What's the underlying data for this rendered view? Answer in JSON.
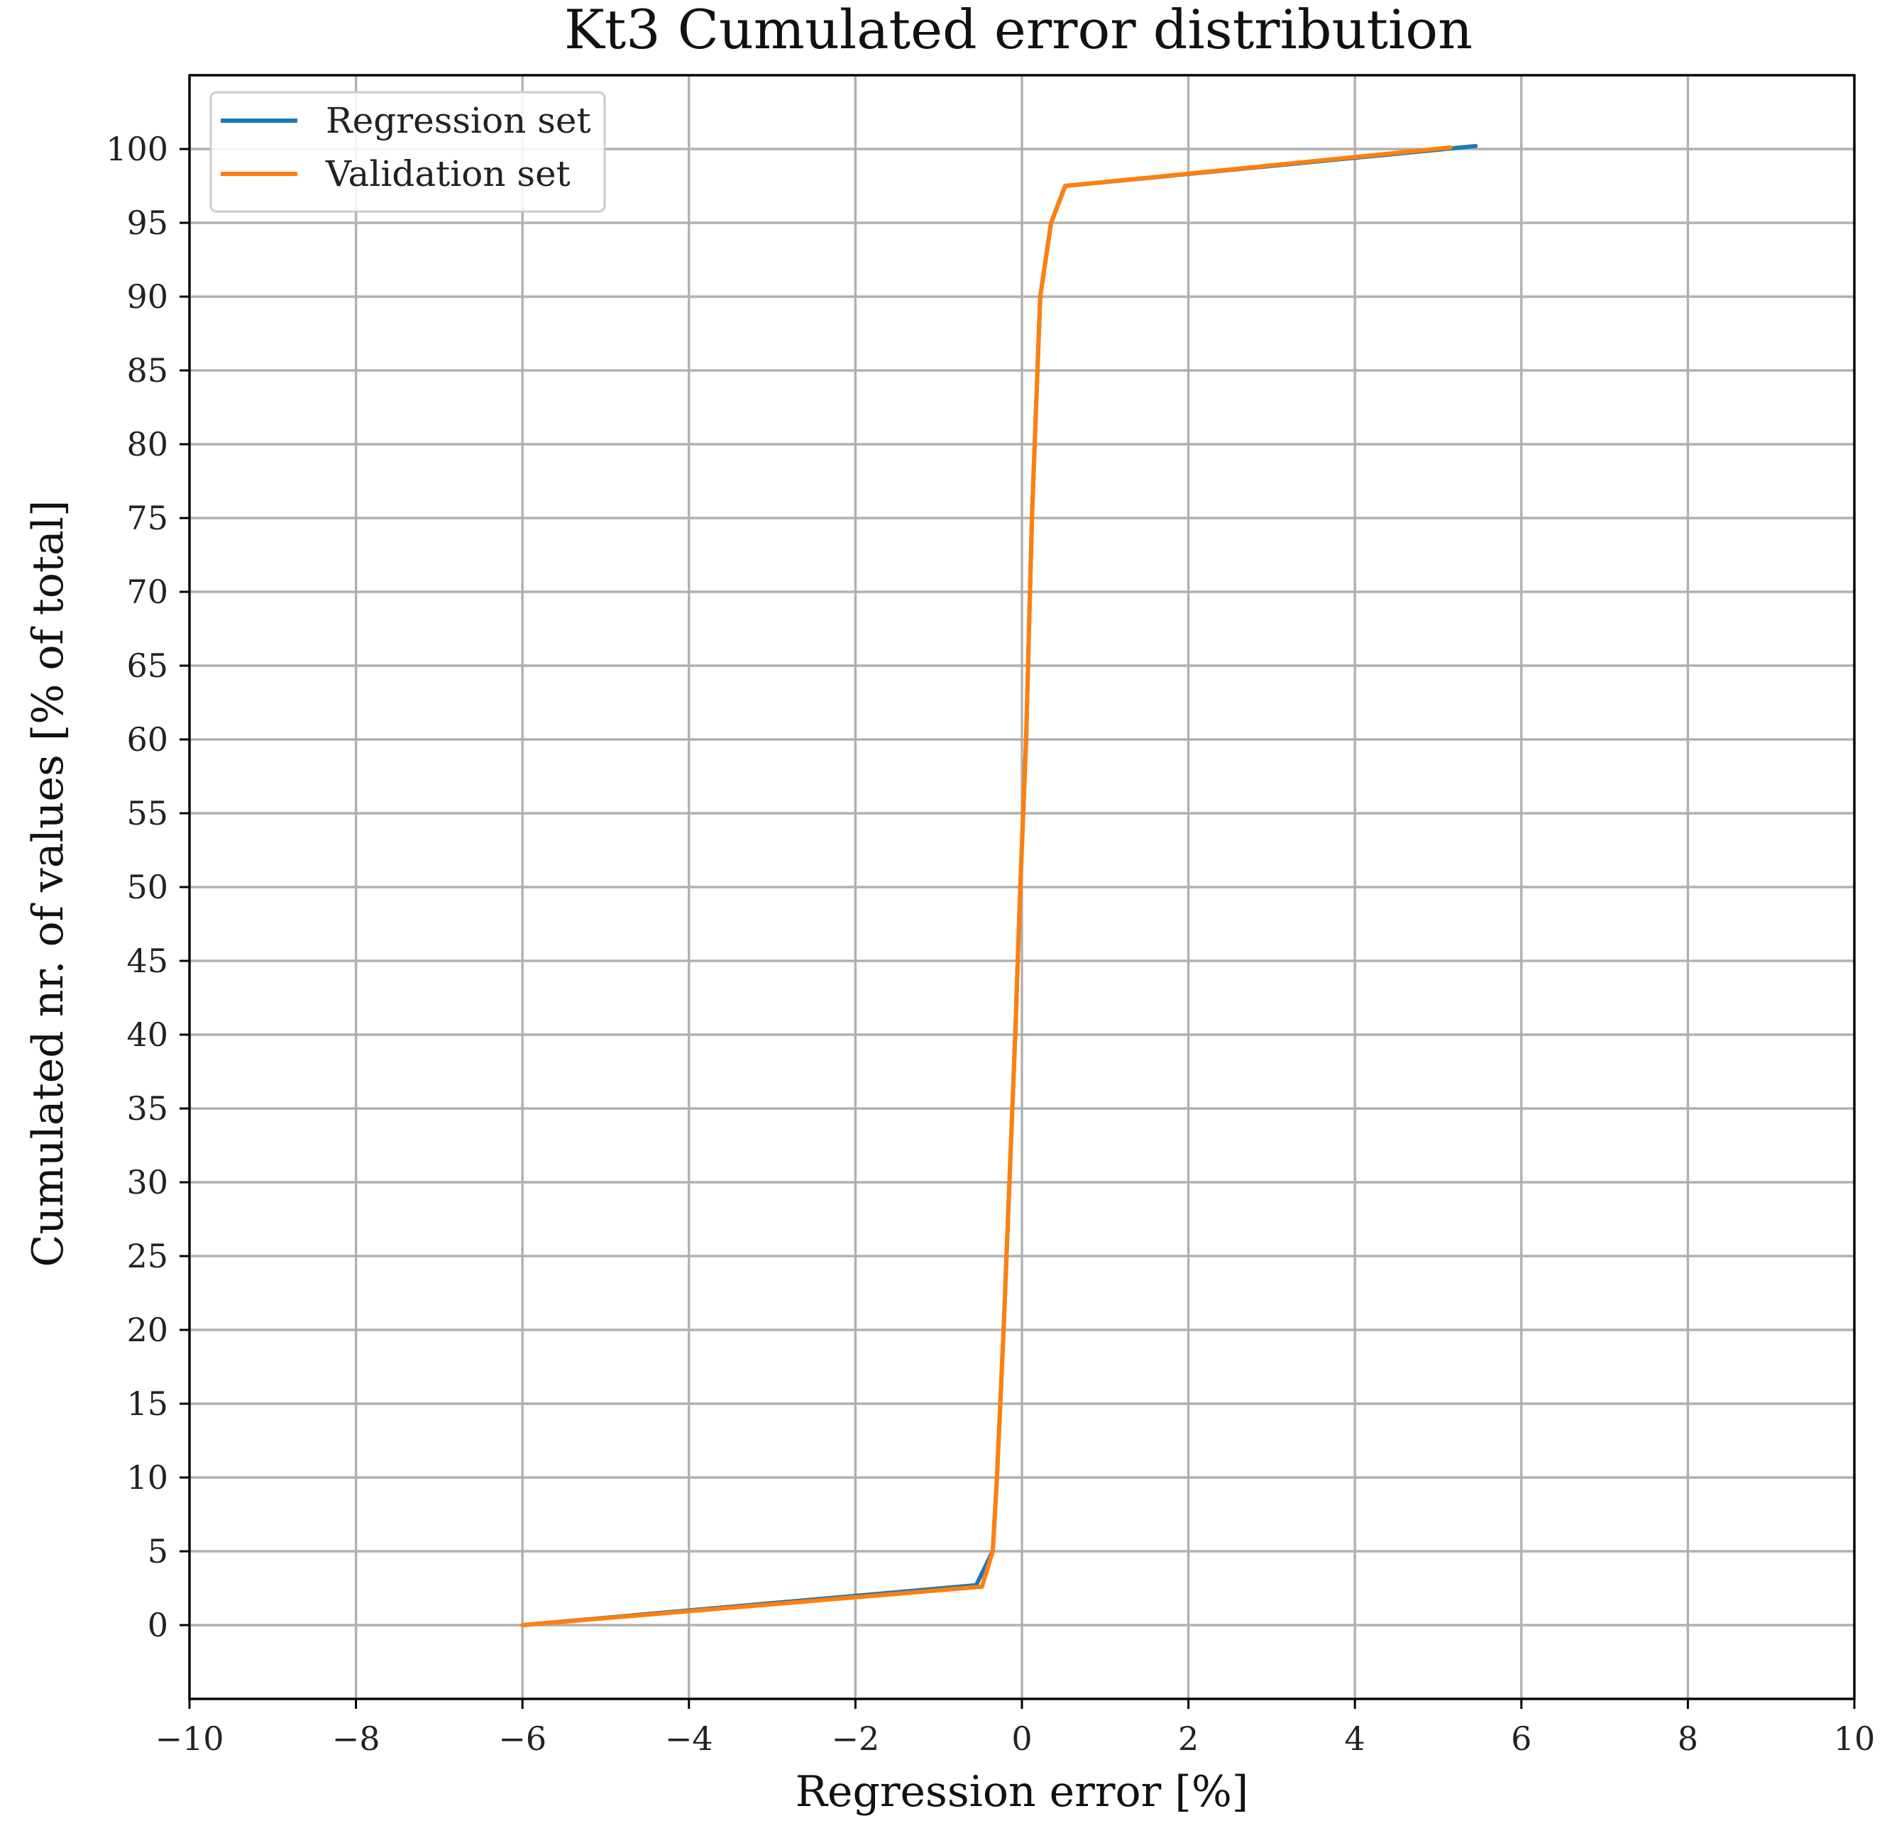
{
  "chart_data": {
    "type": "line",
    "title": "Kt3 Cumulated error distribution",
    "xlabel": "Regression error [%]",
    "ylabel": "Cumulated nr. of values [% of total]",
    "xlim": [
      -10,
      10
    ],
    "ylim": [
      -5,
      105
    ],
    "xticks": [
      -10,
      -8,
      -6,
      -4,
      -2,
      0,
      2,
      4,
      6,
      8,
      10
    ],
    "xtick_labels": [
      "−10",
      "−8",
      "−6",
      "−4",
      "−2",
      "0",
      "2",
      "4",
      "6",
      "8",
      "10"
    ],
    "yticks": [
      0,
      5,
      10,
      15,
      20,
      25,
      30,
      35,
      40,
      45,
      50,
      55,
      60,
      65,
      70,
      75,
      80,
      85,
      90,
      95,
      100
    ],
    "ytick_labels": [
      "0",
      "5",
      "10",
      "15",
      "20",
      "25",
      "30",
      "35",
      "40",
      "45",
      "50",
      "55",
      "60",
      "65",
      "70",
      "75",
      "80",
      "85",
      "90",
      "95",
      "100"
    ],
    "grid": true,
    "legend_position": "top-left",
    "series": [
      {
        "name": "Regression set",
        "color": "#1f77b4",
        "x": [
          -6.0,
          -0.55,
          -0.35,
          -0.3,
          -0.22,
          -0.15,
          -0.08,
          -0.02,
          0.05,
          0.12,
          0.22,
          0.35,
          0.52,
          5.45
        ],
        "y": [
          0,
          2.7,
          5,
          10,
          20,
          30,
          40,
          50,
          60,
          75,
          90,
          95,
          97.5,
          100.2
        ]
      },
      {
        "name": "Validation set",
        "color": "#ff7f0e",
        "x": [
          -6.0,
          -0.48,
          -0.35,
          -0.3,
          -0.22,
          -0.15,
          -0.08,
          -0.02,
          0.05,
          0.12,
          0.22,
          0.35,
          0.52,
          5.15
        ],
        "y": [
          0,
          2.6,
          5,
          10,
          20,
          30,
          40,
          50,
          60,
          75,
          90,
          95,
          97.5,
          100.1
        ]
      }
    ]
  }
}
